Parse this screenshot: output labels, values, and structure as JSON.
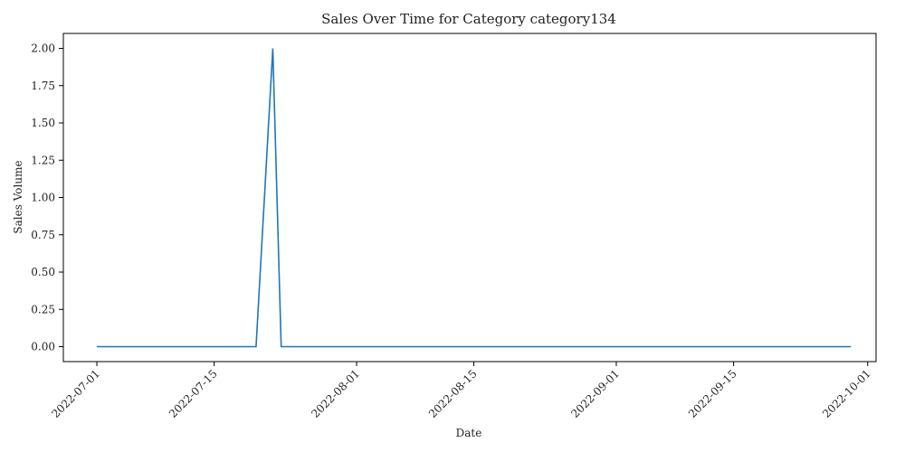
{
  "chart_data": {
    "type": "line",
    "title": "Sales Over Time for Category category134",
    "xlabel": "Date",
    "ylabel": "Sales Volume",
    "x_type": "date",
    "xlim": [
      "2022-06-27",
      "2022-10-02"
    ],
    "ylim": [
      -0.1,
      2.1
    ],
    "x_ticks": [
      "2022-07-01",
      "2022-07-15",
      "2022-08-01",
      "2022-08-15",
      "2022-09-01",
      "2022-09-15",
      "2022-10-01"
    ],
    "y_ticks": [
      "0.00",
      "0.25",
      "0.50",
      "0.75",
      "1.00",
      "1.25",
      "1.50",
      "1.75",
      "2.00"
    ],
    "grid": false,
    "color": "#1f77b4",
    "series": [
      {
        "points": [
          {
            "x": "2022-07-01",
            "y": 0
          },
          {
            "x": "2022-07-20",
            "y": 0
          },
          {
            "x": "2022-07-22",
            "y": 2
          },
          {
            "x": "2022-07-23",
            "y": 0
          },
          {
            "x": "2022-09-29",
            "y": 0
          }
        ]
      }
    ]
  }
}
